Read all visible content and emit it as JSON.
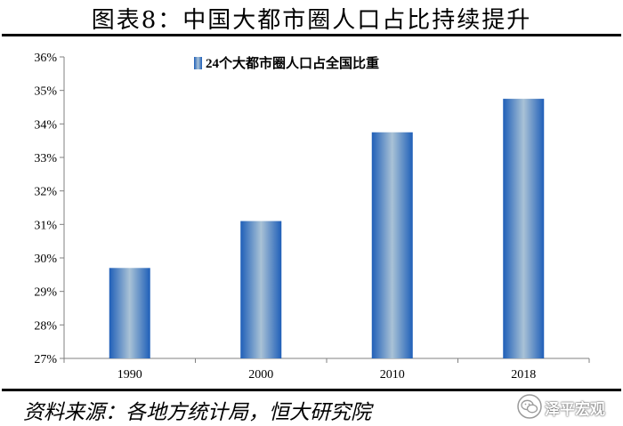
{
  "header": {
    "title": "图表8：中国大都市圈人口占比持续提升"
  },
  "footer": {
    "source": "资料来源：各地方统计局，恒大研究院",
    "watermark": "泽平宏观"
  },
  "colors": {
    "bar_edge": "#1f5fb8",
    "bar_center": "#a9c2d6",
    "axis": "#808080",
    "text": "#000000"
  },
  "chart_data": {
    "type": "bar",
    "categories": [
      "1990",
      "2000",
      "2010",
      "2018"
    ],
    "series": [
      {
        "name": "24个大都市圈人口占全国比重",
        "values": [
          29.7,
          31.1,
          33.75,
          34.75
        ]
      }
    ],
    "ylim": [
      27,
      36
    ],
    "yticks": [
      "27%",
      "28%",
      "29%",
      "30%",
      "31%",
      "32%",
      "33%",
      "34%",
      "35%",
      "36%"
    ],
    "ytick_values": [
      27,
      28,
      29,
      30,
      31,
      32,
      33,
      34,
      35,
      36
    ],
    "xlabel": "",
    "ylabel": "",
    "grid": false,
    "legend": "top-center"
  }
}
